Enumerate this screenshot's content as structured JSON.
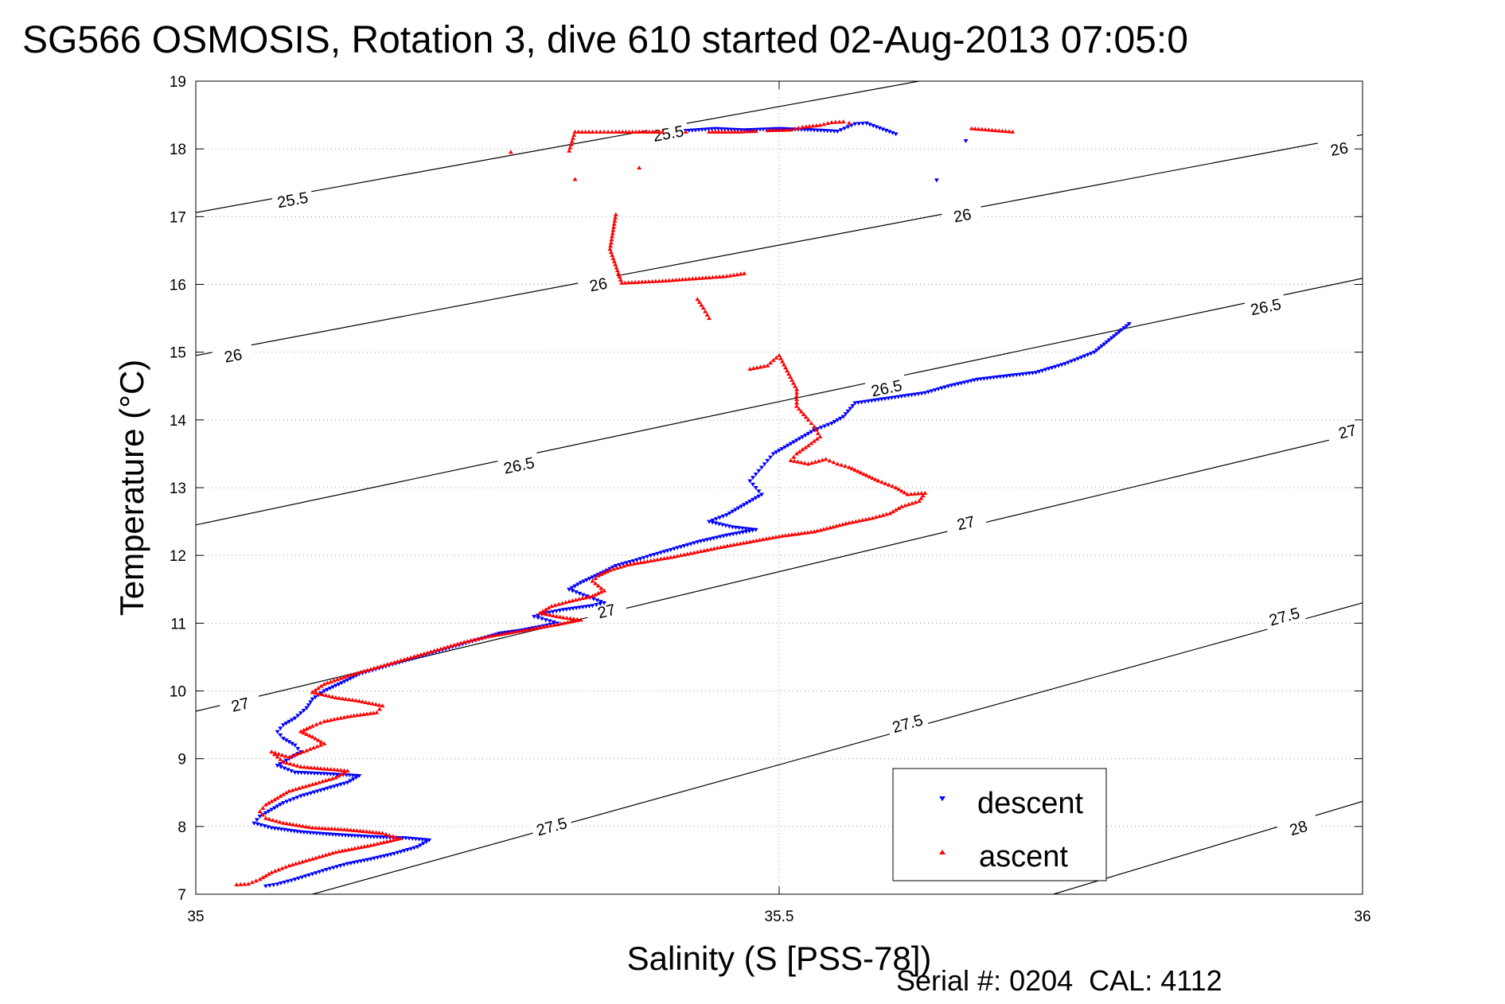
{
  "chart_data": {
    "type": "scatter",
    "title": "SG566 OSMOSIS, Rotation 3, dive 610 started 02-Aug-2013 07:05:0",
    "xlabel": "Salinity (S [PSS-78])",
    "ylabel": "Temperature (°C)",
    "footer": "Serial #: 0204  CAL: 4112",
    "xlim": [
      35,
      36
    ],
    "ylim": [
      7,
      19
    ],
    "xticks": [
      35,
      35.5,
      36
    ],
    "xtick_labels": [
      "35",
      "35.5",
      "36"
    ],
    "yticks": [
      7,
      8,
      9,
      10,
      11,
      12,
      13,
      14,
      15,
      16,
      17,
      18,
      19
    ],
    "grid": "dotted",
    "legend_position": "bottom-right",
    "density_contours": [
      {
        "label": "25.5",
        "line": [
          [
            35,
            17.06
          ],
          [
            35.62,
            19
          ]
        ],
        "labels_at": [
          [
            35.083,
            17.25
          ],
          [
            35.405,
            18.23
          ]
        ]
      },
      {
        "label": "26",
        "line": [
          [
            35,
            14.95
          ],
          [
            36,
            18.21
          ]
        ],
        "labels_at": [
          [
            35.032,
            14.95
          ],
          [
            35.345,
            16.0
          ],
          [
            35.657,
            17.02
          ],
          [
            35.98,
            18.0
          ]
        ]
      },
      {
        "label": "26.5",
        "line": [
          [
            35,
            12.45
          ],
          [
            36,
            16.09
          ]
        ],
        "labels_at": [
          [
            35.277,
            13.33
          ],
          [
            35.592,
            14.47
          ],
          [
            35.917,
            15.67
          ]
        ]
      },
      {
        "label": "27",
        "line": [
          [
            35,
            9.7
          ],
          [
            36,
            13.82
          ]
        ],
        "labels_at": [
          [
            35.038,
            9.8
          ],
          [
            35.352,
            11.18
          ],
          [
            35.66,
            12.48
          ],
          [
            35.987,
            13.83
          ]
        ]
      },
      {
        "label": "27.5",
        "line": [
          [
            35.1,
            7
          ],
          [
            36,
            11.3
          ]
        ],
        "labels_at": [
          [
            35.305,
            8.0
          ],
          [
            35.61,
            9.52
          ],
          [
            35.933,
            11.1
          ]
        ]
      },
      {
        "label": "28",
        "line": [
          [
            35.735,
            7
          ],
          [
            36,
            8.37
          ]
        ],
        "labels_at": [
          [
            35.945,
            7.98
          ]
        ]
      }
    ],
    "series": [
      {
        "name": "descent",
        "color": "#0000ff",
        "marker": "triangle-down",
        "points": [
          [
            35.42,
            18.27
          ],
          [
            35.445,
            18.3
          ],
          [
            35.47,
            18.28
          ],
          [
            35.5,
            18.3
          ],
          [
            35.53,
            18.28
          ],
          [
            35.55,
            18.26
          ],
          [
            35.565,
            18.37
          ],
          [
            35.575,
            18.38
          ],
          [
            35.6,
            18.22
          ],
          [
            35.66,
            18.12
          ],
          [
            35.635,
            17.54
          ],
          [
            35.8,
            15.42
          ],
          [
            35.77,
            15.0
          ],
          [
            35.745,
            14.83
          ],
          [
            35.72,
            14.7
          ],
          [
            35.695,
            14.65
          ],
          [
            35.67,
            14.6
          ],
          [
            35.645,
            14.5
          ],
          [
            35.625,
            14.4
          ],
          [
            35.605,
            14.35
          ],
          [
            35.585,
            14.3
          ],
          [
            35.565,
            14.25
          ],
          [
            35.555,
            14.05
          ],
          [
            35.545,
            13.95
          ],
          [
            35.53,
            13.85
          ],
          [
            35.515,
            13.7
          ],
          [
            35.505,
            13.6
          ],
          [
            35.495,
            13.5
          ],
          [
            35.49,
            13.4
          ],
          [
            35.485,
            13.3
          ],
          [
            35.48,
            13.2
          ],
          [
            35.475,
            13.1
          ],
          [
            35.48,
            13.0
          ],
          [
            35.485,
            12.9
          ],
          [
            35.475,
            12.8
          ],
          [
            35.465,
            12.7
          ],
          [
            35.455,
            12.6
          ],
          [
            35.44,
            12.5
          ],
          [
            35.46,
            12.42
          ],
          [
            35.48,
            12.38
          ],
          [
            35.455,
            12.3
          ],
          [
            35.43,
            12.2
          ],
          [
            35.41,
            12.1
          ],
          [
            35.39,
            12.0
          ],
          [
            35.375,
            11.92
          ],
          [
            35.36,
            11.85
          ],
          [
            35.35,
            11.76
          ],
          [
            35.34,
            11.68
          ],
          [
            35.33,
            11.6
          ],
          [
            35.32,
            11.5
          ],
          [
            35.335,
            11.4
          ],
          [
            35.35,
            11.3
          ],
          [
            35.34,
            11.26
          ],
          [
            35.315,
            11.2
          ],
          [
            35.3,
            11.15
          ],
          [
            35.29,
            11.1
          ],
          [
            35.3,
            11.05
          ],
          [
            35.31,
            11.0
          ],
          [
            35.295,
            10.95
          ],
          [
            35.28,
            10.9
          ],
          [
            35.26,
            10.85
          ],
          [
            35.24,
            10.75
          ],
          [
            35.22,
            10.65
          ],
          [
            35.2,
            10.55
          ],
          [
            35.18,
            10.45
          ],
          [
            35.16,
            10.35
          ],
          [
            35.14,
            10.25
          ],
          [
            35.125,
            10.12
          ],
          [
            35.11,
            10.0
          ],
          [
            35.1,
            9.88
          ],
          [
            35.095,
            9.75
          ],
          [
            35.085,
            9.6
          ],
          [
            35.075,
            9.5
          ],
          [
            35.07,
            9.4
          ],
          [
            35.075,
            9.3
          ],
          [
            35.085,
            9.2
          ],
          [
            35.09,
            9.1
          ],
          [
            35.08,
            9.0
          ],
          [
            35.07,
            8.9
          ],
          [
            35.085,
            8.8
          ],
          [
            35.11,
            8.78
          ],
          [
            35.14,
            8.75
          ],
          [
            35.13,
            8.65
          ],
          [
            35.11,
            8.55
          ],
          [
            35.09,
            8.45
          ],
          [
            35.075,
            8.35
          ],
          [
            35.065,
            8.25
          ],
          [
            35.055,
            8.15
          ],
          [
            35.05,
            8.05
          ],
          [
            35.065,
            7.98
          ],
          [
            35.09,
            7.92
          ],
          [
            35.12,
            7.88
          ],
          [
            35.15,
            7.85
          ],
          [
            35.18,
            7.83
          ],
          [
            35.2,
            7.8
          ],
          [
            35.19,
            7.7
          ],
          [
            35.17,
            7.6
          ],
          [
            35.15,
            7.52
          ],
          [
            35.13,
            7.45
          ],
          [
            35.115,
            7.38
          ],
          [
            35.1,
            7.3
          ],
          [
            35.085,
            7.22
          ],
          [
            35.07,
            7.15
          ],
          [
            35.06,
            7.12
          ]
        ]
      },
      {
        "name": "ascent",
        "color": "#ff0000",
        "marker": "triangle-up",
        "points": [
          [
            35.7,
            18.25
          ],
          [
            35.665,
            18.3
          ],
          [
            35.44,
            18.25
          ],
          [
            35.465,
            18.25
          ],
          [
            35.48,
            18.26
          ],
          [
            35.42,
            18.25
          ],
          [
            35.49,
            18.27
          ],
          [
            35.51,
            18.28
          ],
          [
            35.52,
            18.32
          ],
          [
            35.535,
            18.35
          ],
          [
            35.545,
            18.39
          ],
          [
            35.555,
            18.4
          ],
          [
            35.56,
            18.38
          ],
          [
            35.38,
            18.25
          ],
          [
            35.4,
            18.25
          ],
          [
            35.36,
            18.25
          ],
          [
            35.35,
            18.25
          ],
          [
            35.34,
            18.25
          ],
          [
            35.325,
            18.25
          ],
          [
            35.32,
            17.97
          ],
          [
            35.27,
            17.95
          ],
          [
            35.38,
            17.72
          ],
          [
            35.325,
            17.55
          ],
          [
            35.36,
            17.03
          ],
          [
            35.355,
            16.52
          ],
          [
            35.365,
            16.02
          ],
          [
            35.4,
            16.05
          ],
          [
            35.44,
            16.1
          ],
          [
            35.455,
            16.12
          ],
          [
            35.47,
            16.16
          ],
          [
            35.43,
            15.78
          ],
          [
            35.435,
            15.65
          ],
          [
            35.44,
            15.5
          ],
          [
            35.475,
            14.75
          ],
          [
            35.49,
            14.8
          ],
          [
            35.495,
            14.88
          ],
          [
            35.5,
            14.95
          ],
          [
            35.515,
            14.45
          ],
          [
            35.515,
            14.2
          ],
          [
            35.525,
            14.0
          ],
          [
            35.53,
            13.9
          ],
          [
            35.535,
            13.75
          ],
          [
            35.525,
            13.62
          ],
          [
            35.515,
            13.5
          ],
          [
            35.51,
            13.4
          ],
          [
            35.525,
            13.35
          ],
          [
            35.54,
            13.42
          ],
          [
            35.55,
            13.35
          ],
          [
            35.56,
            13.3
          ],
          [
            35.57,
            13.22
          ],
          [
            35.585,
            13.1
          ],
          [
            35.6,
            13.0
          ],
          [
            35.61,
            12.9
          ],
          [
            35.625,
            12.92
          ],
          [
            35.62,
            12.8
          ],
          [
            35.605,
            12.72
          ],
          [
            35.595,
            12.62
          ],
          [
            35.58,
            12.55
          ],
          [
            35.56,
            12.48
          ],
          [
            35.53,
            12.35
          ],
          [
            35.5,
            12.28
          ],
          [
            35.475,
            12.2
          ],
          [
            35.45,
            12.12
          ],
          [
            35.43,
            12.05
          ],
          [
            35.41,
            11.98
          ],
          [
            35.39,
            11.92
          ],
          [
            35.37,
            11.86
          ],
          [
            35.355,
            11.78
          ],
          [
            35.345,
            11.7
          ],
          [
            35.34,
            11.62
          ],
          [
            35.345,
            11.55
          ],
          [
            35.35,
            11.48
          ],
          [
            35.34,
            11.4
          ],
          [
            35.32,
            11.32
          ],
          [
            35.305,
            11.25
          ],
          [
            35.295,
            11.15
          ],
          [
            35.315,
            11.08
          ],
          [
            35.33,
            11.05
          ],
          [
            35.31,
            10.98
          ],
          [
            35.29,
            10.92
          ],
          [
            35.27,
            10.86
          ],
          [
            35.25,
            10.8
          ],
          [
            35.23,
            10.72
          ],
          [
            35.21,
            10.62
          ],
          [
            35.19,
            10.52
          ],
          [
            35.17,
            10.42
          ],
          [
            35.15,
            10.32
          ],
          [
            35.13,
            10.22
          ],
          [
            35.11,
            10.1
          ],
          [
            35.1,
            9.98
          ],
          [
            35.12,
            9.9
          ],
          [
            35.14,
            9.85
          ],
          [
            35.16,
            9.78
          ],
          [
            35.155,
            9.68
          ],
          [
            35.13,
            9.62
          ],
          [
            35.11,
            9.55
          ],
          [
            35.1,
            9.48
          ],
          [
            35.09,
            9.4
          ],
          [
            35.1,
            9.32
          ],
          [
            35.11,
            9.22
          ],
          [
            35.095,
            9.12
          ],
          [
            35.08,
            9.02
          ],
          [
            35.065,
            9.1
          ],
          [
            35.075,
            8.95
          ],
          [
            35.09,
            8.88
          ],
          [
            35.11,
            8.85
          ],
          [
            35.13,
            8.82
          ],
          [
            35.12,
            8.72
          ],
          [
            35.1,
            8.62
          ],
          [
            35.08,
            8.52
          ],
          [
            35.07,
            8.42
          ],
          [
            35.06,
            8.32
          ],
          [
            35.055,
            8.22
          ],
          [
            35.06,
            8.12
          ],
          [
            35.075,
            8.05
          ],
          [
            35.1,
            7.98
          ],
          [
            35.13,
            7.95
          ],
          [
            35.16,
            7.9
          ],
          [
            35.175,
            7.82
          ],
          [
            35.15,
            7.72
          ],
          [
            35.12,
            7.62
          ],
          [
            35.1,
            7.52
          ],
          [
            35.08,
            7.42
          ],
          [
            35.065,
            7.32
          ],
          [
            35.055,
            7.22
          ],
          [
            35.045,
            7.15
          ],
          [
            35.035,
            7.14
          ]
        ]
      }
    ]
  }
}
